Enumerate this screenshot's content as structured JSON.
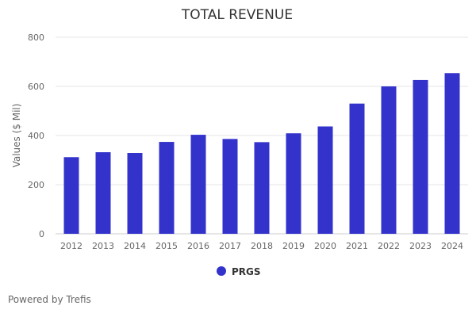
{
  "chart_data": {
    "type": "bar",
    "title": "TOTAL REVENUE",
    "xlabel": "",
    "ylabel": "Values ($ Mil)",
    "ylim": [
      0,
      800
    ],
    "yticks": [
      0,
      200,
      400,
      600,
      800
    ],
    "grid": true,
    "legend_placement": "bottom-center",
    "categories": [
      "2012",
      "2013",
      "2014",
      "2015",
      "2016",
      "2017",
      "2018",
      "2019",
      "2020",
      "2021",
      "2022",
      "2023",
      "2024"
    ],
    "series": [
      {
        "name": "PRGS",
        "color": "#3333cc",
        "values": [
          312,
          332,
          329,
          374,
          403,
          386,
          373,
          409,
          437,
          530,
          600,
          626,
          654
        ]
      }
    ]
  },
  "footer": {
    "credit": "Powered by Trefis"
  }
}
